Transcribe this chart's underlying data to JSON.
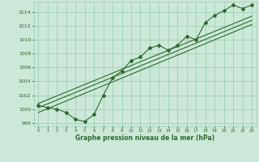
{
  "x": [
    0,
    1,
    2,
    3,
    4,
    5,
    6,
    7,
    8,
    9,
    10,
    11,
    12,
    13,
    14,
    15,
    16,
    17,
    18,
    19,
    20,
    21,
    22,
    23
  ],
  "pressure": [
    1000.5,
    1000.2,
    1000.0,
    999.5,
    998.5,
    998.2,
    999.2,
    1002.0,
    1004.5,
    1005.5,
    1007.0,
    1007.5,
    1008.8,
    1009.2,
    1008.5,
    1009.2,
    1010.5,
    1010.0,
    1012.5,
    1013.5,
    1014.2,
    1015.0,
    1014.5,
    1015.0
  ],
  "line_color": "#2d6a2d",
  "bg_color": "#cce8d8",
  "grid_color": "#99ccb0",
  "xlabel": "Graphe pression niveau de la mer (hPa)",
  "ylim": [
    997.5,
    1015.5
  ],
  "xlim": [
    -0.5,
    23.5
  ],
  "yticks": [
    998,
    1000,
    1002,
    1004,
    1006,
    1008,
    1010,
    1012,
    1014
  ],
  "xticks": [
    0,
    1,
    2,
    3,
    4,
    5,
    6,
    7,
    8,
    9,
    10,
    11,
    12,
    13,
    14,
    15,
    16,
    17,
    18,
    19,
    20,
    21,
    22,
    23
  ],
  "trend1_x": [
    0,
    23
  ],
  "trend1_y": [
    1000.2,
    1012.8
  ],
  "trend2_x": [
    0,
    23
  ],
  "trend2_y": [
    999.5,
    1012.2
  ],
  "trend3_x": [
    0,
    23
  ],
  "trend3_y": [
    1000.8,
    1013.4
  ]
}
